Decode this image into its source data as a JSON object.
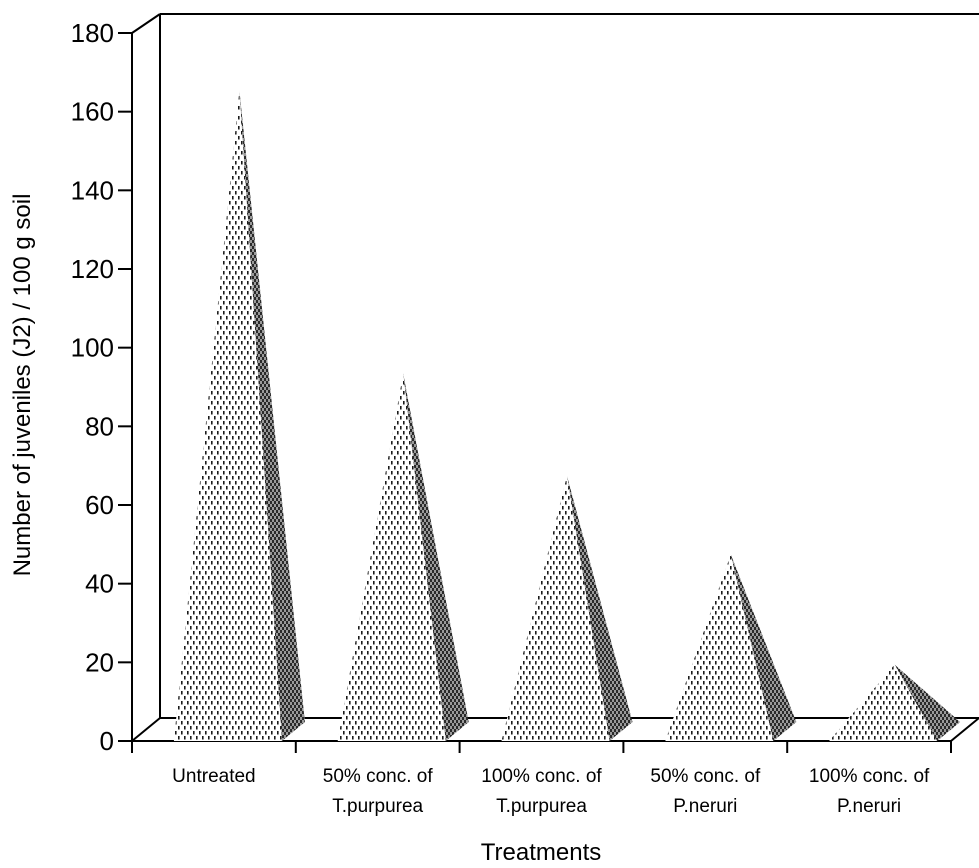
{
  "chart_data": {
    "type": "bar",
    "bar_shape": "pyramid",
    "categories": [
      [
        "Untreated"
      ],
      [
        "50% conc. of",
        "T.purpurea"
      ],
      [
        "100% conc. of",
        "T.purpurea"
      ],
      [
        "50% conc. of",
        "P.neruri"
      ],
      [
        "100% conc. of",
        "P.neruri"
      ]
    ],
    "values": [
      163,
      91,
      65,
      45,
      17
    ],
    "xlabel": "Treatments",
    "ylabel": "Number of juveniles (J2) / 100 g soil",
    "ylim": [
      0,
      180
    ],
    "yticks": [
      "0",
      "20",
      "40",
      "60",
      "80",
      "100",
      "120",
      "140",
      "160",
      "180"
    ],
    "grid": false
  }
}
